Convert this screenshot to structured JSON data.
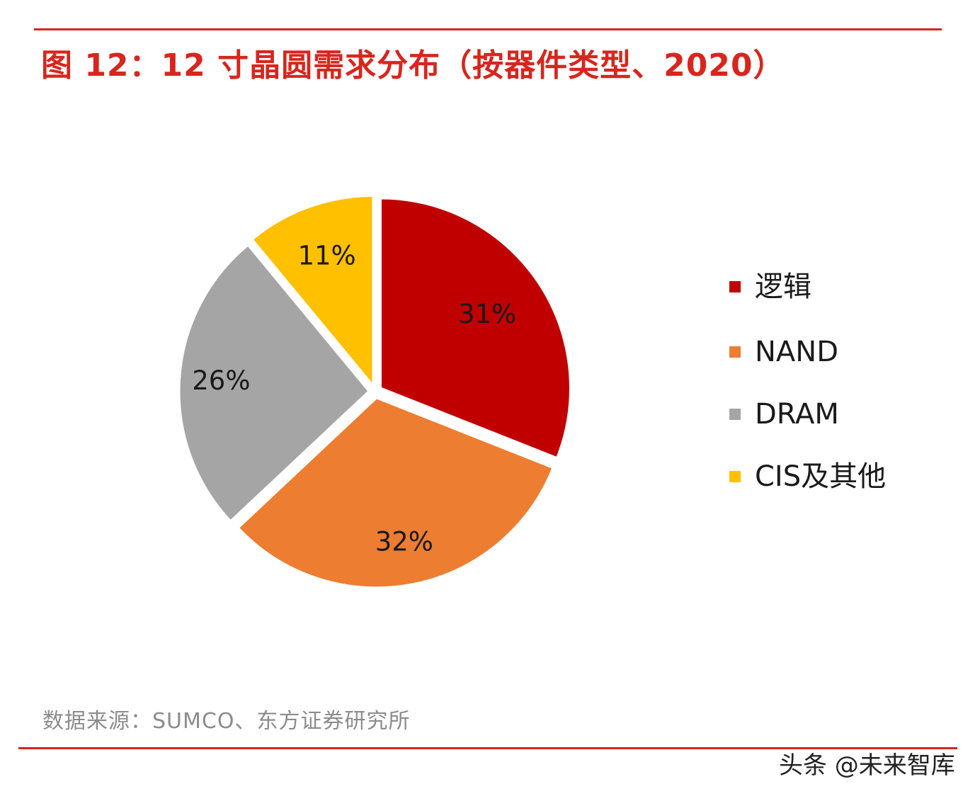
{
  "chart_data": {
    "type": "pie",
    "title": "图 12：12 寸晶圆需求分布（按器件类型、2020）",
    "categories": [
      "逻辑",
      "NAND",
      "DRAM",
      "CIS及其他"
    ],
    "values": [
      31,
      32,
      26,
      11
    ],
    "value_labels": [
      "31%",
      "32%",
      "26%",
      "11%"
    ],
    "unit": "%",
    "legend_position": "right",
    "colors": [
      "#c00000",
      "#ed7d31",
      "#a5a5a5",
      "#ffc000"
    ],
    "source": "数据来源：SUMCO、东方证券研究所"
  },
  "theme": {
    "accent": "#d7261e"
  },
  "watermark": "头条 @未来智库"
}
